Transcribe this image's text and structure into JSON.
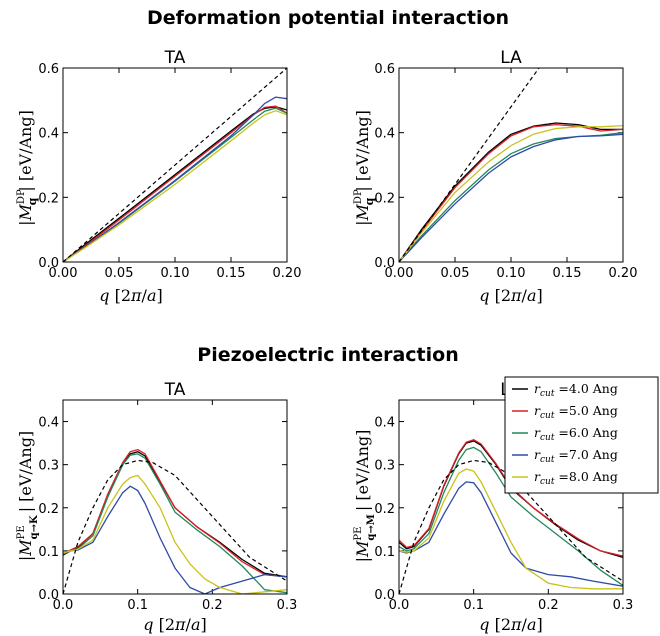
{
  "section_titles": {
    "deformation": "Deformation potential interaction",
    "piezo": "Piezoelectric interaction"
  },
  "axis_labels": {
    "x": "q [2π/a]",
    "y_dp": "|M_q^DP| [eV/Ang]",
    "y_pe_k": "|M_{q→K}^PE| [eV/Ang]",
    "y_pe_m": "|M_{q→M}^PE| [eV/Ang]"
  },
  "legend": {
    "entries": [
      {
        "label": "r_cut = 4.0 Ang",
        "color": "#000000"
      },
      {
        "label": "r_cut = 5.0 Ang",
        "color": "#dd1f26"
      },
      {
        "label": "r_cut = 6.0 Ang",
        "color": "#23875a"
      },
      {
        "label": "r_cut = 7.0 Ang",
        "color": "#2f4aa8"
      },
      {
        "label": "r_cut = 8.0 Ang",
        "color": "#c9c31d"
      }
    ],
    "placement": "top-right of bottom-right panel"
  },
  "chart_data": [
    {
      "id": "dp_ta",
      "type": "line",
      "title": "TA",
      "xlim": [
        0,
        0.2
      ],
      "ylim": [
        0,
        0.6
      ],
      "xticks": [
        "0.00",
        "0.05",
        "0.10",
        "0.15",
        "0.20"
      ],
      "yticks": [
        "0.0",
        "0.2",
        "0.4",
        "0.6"
      ],
      "dashed": {
        "x": [
          0,
          0.2
        ],
        "y": [
          0,
          0.6
        ]
      },
      "series": [
        {
          "color": "#000000",
          "x": [
            0,
            0.02,
            0.05,
            0.1,
            0.15,
            0.17,
            0.18,
            0.19,
            0.2
          ],
          "y": [
            0,
            0.055,
            0.135,
            0.27,
            0.405,
            0.458,
            0.475,
            0.48,
            0.47
          ]
        },
        {
          "color": "#dd1f26",
          "x": [
            0,
            0.02,
            0.05,
            0.1,
            0.15,
            0.17,
            0.18,
            0.19,
            0.2
          ],
          "y": [
            0,
            0.05,
            0.13,
            0.265,
            0.4,
            0.455,
            0.478,
            0.482,
            0.46
          ]
        },
        {
          "color": "#23875a",
          "x": [
            0,
            0.02,
            0.05,
            0.1,
            0.15,
            0.17,
            0.18,
            0.19,
            0.2
          ],
          "y": [
            0,
            0.047,
            0.12,
            0.25,
            0.385,
            0.44,
            0.466,
            0.476,
            0.46
          ]
        },
        {
          "color": "#2f4aa8",
          "x": [
            0,
            0.02,
            0.05,
            0.1,
            0.15,
            0.17,
            0.18,
            0.19,
            0.2
          ],
          "y": [
            0,
            0.047,
            0.122,
            0.252,
            0.39,
            0.455,
            0.49,
            0.51,
            0.505
          ]
        },
        {
          "color": "#c9c31d",
          "x": [
            0,
            0.02,
            0.05,
            0.1,
            0.15,
            0.17,
            0.18,
            0.19,
            0.2
          ],
          "y": [
            0,
            0.045,
            0.115,
            0.24,
            0.375,
            0.43,
            0.455,
            0.468,
            0.455
          ]
        }
      ]
    },
    {
      "id": "dp_la",
      "type": "line",
      "title": "LA",
      "xlim": [
        0,
        0.2
      ],
      "ylim": [
        0,
        0.6
      ],
      "xticks": [
        "0.00",
        "0.05",
        "0.10",
        "0.15",
        "0.20"
      ],
      "yticks": [
        "0.0",
        "0.2",
        "0.4",
        "0.6"
      ],
      "dashed": {
        "x": [
          0,
          0.125
        ],
        "y": [
          0,
          0.6
        ]
      },
      "series": [
        {
          "color": "#000000",
          "x": [
            0,
            0.02,
            0.05,
            0.08,
            0.1,
            0.12,
            0.14,
            0.16,
            0.18,
            0.2
          ],
          "y": [
            0,
            0.1,
            0.235,
            0.34,
            0.395,
            0.42,
            0.43,
            0.425,
            0.41,
            0.41
          ]
        },
        {
          "color": "#dd1f26",
          "x": [
            0,
            0.02,
            0.05,
            0.08,
            0.1,
            0.12,
            0.14,
            0.16,
            0.18,
            0.2
          ],
          "y": [
            0,
            0.095,
            0.23,
            0.335,
            0.39,
            0.418,
            0.425,
            0.42,
            0.405,
            0.41
          ]
        },
        {
          "color": "#23875a",
          "x": [
            0,
            0.02,
            0.05,
            0.08,
            0.1,
            0.12,
            0.14,
            0.16,
            0.18,
            0.2
          ],
          "y": [
            0,
            0.08,
            0.19,
            0.285,
            0.335,
            0.365,
            0.382,
            0.388,
            0.392,
            0.4
          ]
        },
        {
          "color": "#2f4aa8",
          "x": [
            0,
            0.02,
            0.05,
            0.08,
            0.1,
            0.12,
            0.14,
            0.16,
            0.18,
            0.2
          ],
          "y": [
            0,
            0.075,
            0.18,
            0.275,
            0.325,
            0.357,
            0.378,
            0.388,
            0.39,
            0.395
          ]
        },
        {
          "color": "#c9c31d",
          "x": [
            0,
            0.02,
            0.05,
            0.08,
            0.1,
            0.12,
            0.14,
            0.16,
            0.18,
            0.2
          ],
          "y": [
            0,
            0.09,
            0.215,
            0.31,
            0.36,
            0.395,
            0.413,
            0.418,
            0.418,
            0.422
          ]
        }
      ]
    },
    {
      "id": "pe_ta",
      "type": "line",
      "title": "TA",
      "xlim": [
        0,
        0.3
      ],
      "ylim": [
        0,
        0.45
      ],
      "xticks": [
        "0.0",
        "0.1",
        "0.2",
        "0.3"
      ],
      "yticks": [
        "0.0",
        "0.1",
        "0.2",
        "0.3",
        "0.4"
      ],
      "dashed": {
        "x": [
          0,
          0.02,
          0.04,
          0.06,
          0.08,
          0.1,
          0.12,
          0.15,
          0.2,
          0.25,
          0.3
        ],
        "y": [
          0,
          0.12,
          0.2,
          0.265,
          0.3,
          0.31,
          0.305,
          0.275,
          0.18,
          0.085,
          0.03
        ]
      },
      "series": [
        {
          "color": "#000000",
          "x": [
            0,
            0.01,
            0.02,
            0.04,
            0.06,
            0.08,
            0.09,
            0.1,
            0.11,
            0.13,
            0.15,
            0.18,
            0.21,
            0.24,
            0.27,
            0.3
          ],
          "y": [
            0.09,
            0.1,
            0.108,
            0.14,
            0.23,
            0.3,
            0.325,
            0.33,
            0.32,
            0.26,
            0.2,
            0.155,
            0.12,
            0.08,
            0.048,
            0.04
          ]
        },
        {
          "color": "#dd1f26",
          "x": [
            0,
            0.01,
            0.02,
            0.04,
            0.06,
            0.08,
            0.09,
            0.1,
            0.11,
            0.13,
            0.15,
            0.18,
            0.21,
            0.24,
            0.27,
            0.3
          ],
          "y": [
            0.092,
            0.102,
            0.11,
            0.14,
            0.232,
            0.305,
            0.33,
            0.335,
            0.325,
            0.262,
            0.2,
            0.155,
            0.118,
            0.075,
            0.045,
            0.04
          ]
        },
        {
          "color": "#23875a",
          "x": [
            0,
            0.01,
            0.02,
            0.04,
            0.06,
            0.08,
            0.09,
            0.1,
            0.11,
            0.13,
            0.15,
            0.18,
            0.21,
            0.24,
            0.27,
            0.3
          ],
          "y": [
            0.092,
            0.1,
            0.105,
            0.135,
            0.225,
            0.3,
            0.322,
            0.325,
            0.315,
            0.255,
            0.19,
            0.148,
            0.11,
            0.065,
            0.01,
            0.003
          ]
        },
        {
          "color": "#2f4aa8",
          "x": [
            0,
            0.01,
            0.02,
            0.04,
            0.06,
            0.08,
            0.09,
            0.1,
            0.11,
            0.13,
            0.15,
            0.17,
            0.19,
            0.21,
            0.24,
            0.27,
            0.3
          ],
          "y": [
            0.095,
            0.1,
            0.102,
            0.12,
            0.18,
            0.235,
            0.25,
            0.24,
            0.21,
            0.13,
            0.06,
            0.015,
            0.0,
            0.015,
            0.03,
            0.045,
            0.04
          ]
        },
        {
          "color": "#c9c31d",
          "x": [
            0,
            0.01,
            0.02,
            0.04,
            0.06,
            0.08,
            0.09,
            0.1,
            0.11,
            0.13,
            0.15,
            0.17,
            0.19,
            0.21,
            0.24,
            0.27,
            0.3
          ],
          "y": [
            0.095,
            0.1,
            0.104,
            0.125,
            0.2,
            0.255,
            0.27,
            0.275,
            0.255,
            0.2,
            0.12,
            0.07,
            0.035,
            0.015,
            0.0,
            0.005,
            0.01
          ]
        }
      ]
    },
    {
      "id": "pe_la",
      "type": "line",
      "title": "LA",
      "xlim": [
        0,
        0.3
      ],
      "ylim": [
        0,
        0.45
      ],
      "xticks": [
        "0.0",
        "0.1",
        "0.2",
        "0.3"
      ],
      "yticks": [
        "0.0",
        "0.1",
        "0.2",
        "0.3",
        "0.4"
      ],
      "dashed": {
        "x": [
          0,
          0.02,
          0.04,
          0.06,
          0.08,
          0.1,
          0.12,
          0.15,
          0.2,
          0.25,
          0.3
        ],
        "y": [
          0,
          0.12,
          0.2,
          0.265,
          0.3,
          0.31,
          0.305,
          0.275,
          0.18,
          0.085,
          0.03
        ]
      },
      "series": [
        {
          "color": "#000000",
          "x": [
            0,
            0.01,
            0.02,
            0.04,
            0.06,
            0.08,
            0.09,
            0.1,
            0.11,
            0.13,
            0.15,
            0.18,
            0.21,
            0.24,
            0.27,
            0.3
          ],
          "y": [
            0.12,
            0.105,
            0.11,
            0.15,
            0.25,
            0.325,
            0.35,
            0.355,
            0.345,
            0.3,
            0.245,
            0.2,
            0.16,
            0.125,
            0.1,
            0.085
          ]
        },
        {
          "color": "#dd1f26",
          "x": [
            0,
            0.01,
            0.02,
            0.04,
            0.06,
            0.08,
            0.09,
            0.1,
            0.11,
            0.13,
            0.15,
            0.18,
            0.21,
            0.24,
            0.27,
            0.3
          ],
          "y": [
            0.125,
            0.108,
            0.112,
            0.152,
            0.252,
            0.327,
            0.352,
            0.358,
            0.348,
            0.302,
            0.248,
            0.2,
            0.162,
            0.128,
            0.1,
            0.088
          ]
        },
        {
          "color": "#23875a",
          "x": [
            0,
            0.01,
            0.02,
            0.04,
            0.06,
            0.08,
            0.09,
            0.1,
            0.11,
            0.13,
            0.15,
            0.18,
            0.21,
            0.24,
            0.27,
            0.3
          ],
          "y": [
            0.11,
            0.1,
            0.105,
            0.14,
            0.235,
            0.31,
            0.335,
            0.34,
            0.33,
            0.28,
            0.225,
            0.18,
            0.14,
            0.1,
            0.055,
            0.02
          ]
        },
        {
          "color": "#2f4aa8",
          "x": [
            0,
            0.01,
            0.02,
            0.04,
            0.06,
            0.08,
            0.09,
            0.1,
            0.11,
            0.13,
            0.15,
            0.17,
            0.2,
            0.23,
            0.26,
            0.3
          ],
          "y": [
            0.1,
            0.095,
            0.1,
            0.12,
            0.185,
            0.245,
            0.26,
            0.258,
            0.235,
            0.165,
            0.095,
            0.06,
            0.045,
            0.04,
            0.03,
            0.018
          ]
        },
        {
          "color": "#c9c31d",
          "x": [
            0,
            0.01,
            0.02,
            0.04,
            0.06,
            0.08,
            0.09,
            0.1,
            0.11,
            0.13,
            0.15,
            0.17,
            0.2,
            0.23,
            0.26,
            0.3
          ],
          "y": [
            0.1,
            0.097,
            0.1,
            0.13,
            0.215,
            0.28,
            0.29,
            0.285,
            0.26,
            0.19,
            0.12,
            0.06,
            0.025,
            0.015,
            0.012,
            0.012
          ]
        }
      ]
    }
  ]
}
